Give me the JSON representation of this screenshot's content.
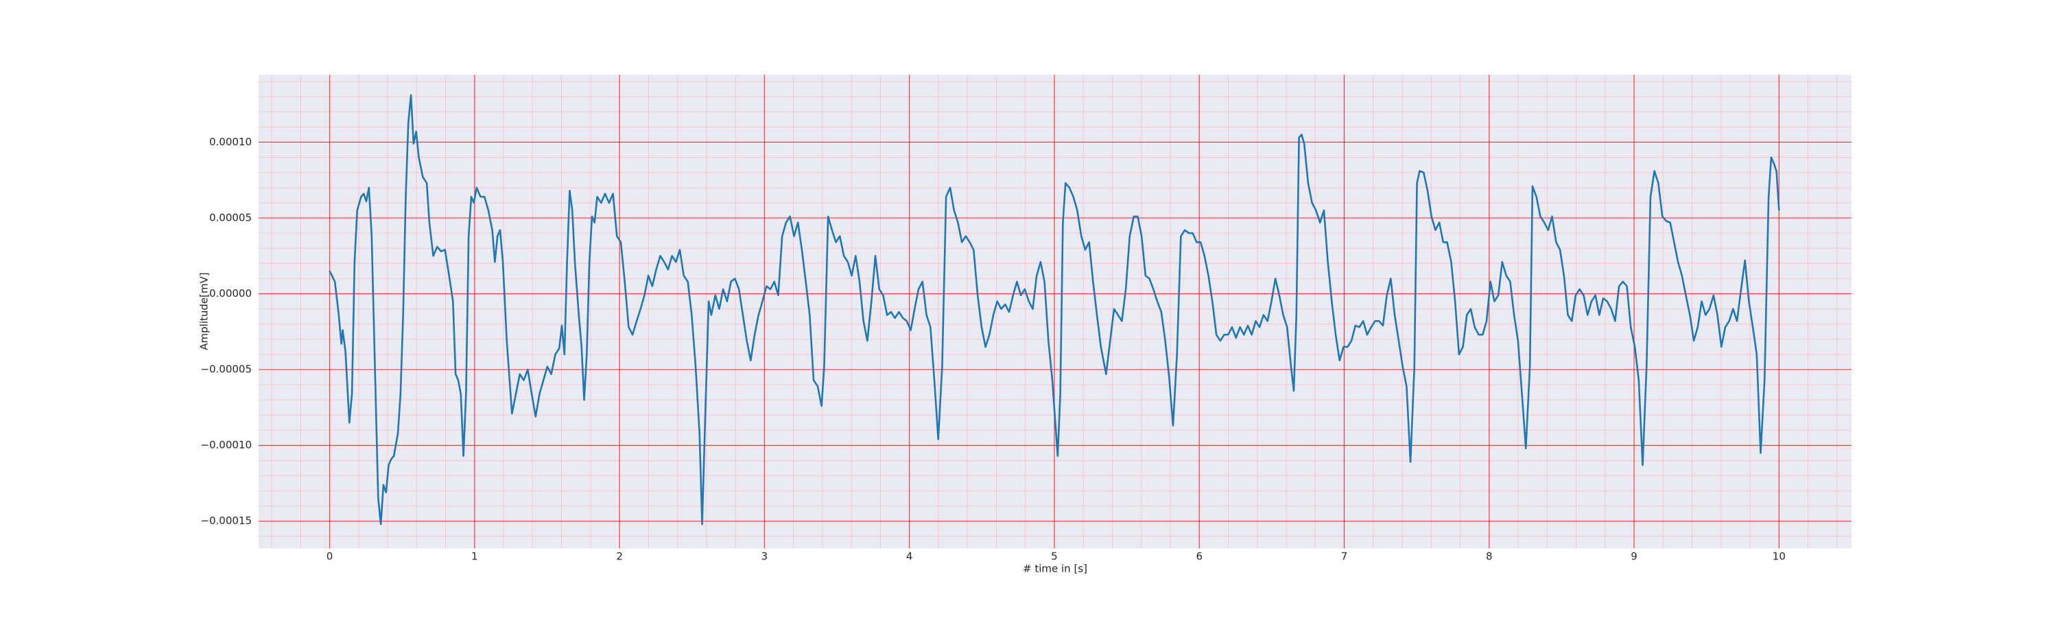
{
  "chart_data": {
    "type": "line",
    "x_label": "# time in [s]",
    "y_label": "Amplitude[mV]",
    "color": "#1f77b4",
    "grid": true,
    "minor_grid": true,
    "background": "#eaeaf2",
    "grid_color": "#ff0000",
    "minor_grid_color": "#ffb6c1",
    "xlim": [
      -0.49,
      10.5
    ],
    "ylim": [
      -0.000168,
      0.0001445
    ],
    "xticks": [
      0,
      1,
      2,
      3,
      4,
      5,
      6,
      7,
      8,
      9,
      10
    ],
    "yticks": [
      {
        "value": -0.00015,
        "label": "−0.00015"
      },
      {
        "value": -0.0001,
        "label": "−0.00010"
      },
      {
        "value": -5e-05,
        "label": "−0.00005"
      },
      {
        "value": 0,
        "label": "0.00000"
      },
      {
        "value": 5e-05,
        "label": "0.00005"
      },
      {
        "value": 0.0001,
        "label": "0.00010"
      }
    ],
    "x": [
      0.0,
      0.036,
      0.063,
      0.081,
      0.09,
      0.109,
      0.136,
      0.154,
      0.172,
      0.19,
      0.217,
      0.235,
      0.253,
      0.271,
      0.29,
      0.317,
      0.335,
      0.353,
      0.371,
      0.389,
      0.407,
      0.425,
      0.443,
      0.471,
      0.489,
      0.507,
      0.525,
      0.543,
      0.561,
      0.579,
      0.597,
      0.615,
      0.643,
      0.67,
      0.688,
      0.715,
      0.742,
      0.769,
      0.796,
      0.824,
      0.851,
      0.869,
      0.887,
      0.905,
      0.923,
      0.941,
      0.959,
      0.977,
      0.995,
      1.014,
      1.041,
      1.068,
      1.095,
      1.122,
      1.14,
      1.158,
      1.176,
      1.195,
      1.222,
      1.258,
      1.285,
      1.312,
      1.339,
      1.367,
      1.394,
      1.421,
      1.448,
      1.475,
      1.502,
      1.529,
      1.557,
      1.584,
      1.602,
      1.62,
      1.638,
      1.656,
      1.674,
      1.692,
      1.719,
      1.738,
      1.756,
      1.774,
      1.792,
      1.81,
      1.828,
      1.846,
      1.873,
      1.9,
      1.928,
      1.955,
      1.982,
      2.009,
      2.036,
      2.063,
      2.09,
      2.118,
      2.145,
      2.172,
      2.199,
      2.226,
      2.253,
      2.281,
      2.308,
      2.335,
      2.362,
      2.389,
      2.416,
      2.443,
      2.471,
      2.498,
      2.525,
      2.552,
      2.57,
      2.588,
      2.615,
      2.633,
      2.661,
      2.688,
      2.715,
      2.742,
      2.769,
      2.796,
      2.824,
      2.851,
      2.878,
      2.905,
      2.932,
      2.959,
      2.986,
      3.014,
      3.041,
      3.068,
      3.095,
      3.122,
      3.149,
      3.176,
      3.204,
      3.231,
      3.258,
      3.285,
      3.312,
      3.339,
      3.367,
      3.394,
      3.412,
      3.439,
      3.466,
      3.493,
      3.52,
      3.548,
      3.575,
      3.602,
      3.629,
      3.656,
      3.683,
      3.71,
      3.738,
      3.765,
      3.792,
      3.819,
      3.846,
      3.873,
      3.9,
      3.928,
      3.955,
      3.982,
      4.009,
      4.036,
      4.063,
      4.09,
      4.118,
      4.145,
      4.172,
      4.199,
      4.226,
      4.253,
      4.281,
      4.308,
      4.335,
      4.362,
      4.389,
      4.416,
      4.443,
      4.471,
      4.498,
      4.525,
      4.552,
      4.579,
      4.606,
      4.633,
      4.661,
      4.688,
      4.715,
      4.742,
      4.769,
      4.796,
      4.824,
      4.851,
      4.878,
      4.905,
      4.932,
      4.959,
      4.986,
      5.023,
      5.041,
      5.059,
      5.077,
      5.104,
      5.131,
      5.158,
      5.186,
      5.213,
      5.24,
      5.267,
      5.294,
      5.321,
      5.357,
      5.385,
      5.412,
      5.439,
      5.466,
      5.493,
      5.52,
      5.548,
      5.575,
      5.602,
      5.629,
      5.656,
      5.683,
      5.71,
      5.738,
      5.765,
      5.792,
      5.819,
      5.846,
      5.873,
      5.9,
      5.928,
      5.955,
      5.982,
      6.009,
      6.036,
      6.063,
      6.09,
      6.118,
      6.145,
      6.172,
      6.199,
      6.226,
      6.253,
      6.281,
      6.308,
      6.335,
      6.362,
      6.389,
      6.416,
      6.443,
      6.471,
      6.498,
      6.525,
      6.552,
      6.579,
      6.606,
      6.633,
      6.652,
      6.67,
      6.688,
      6.706,
      6.724,
      6.751,
      6.778,
      6.805,
      6.833,
      6.86,
      6.887,
      6.914,
      6.941,
      6.968,
      6.995,
      7.023,
      7.05,
      7.077,
      7.104,
      7.131,
      7.158,
      7.186,
      7.213,
      7.24,
      7.267,
      7.294,
      7.321,
      7.348,
      7.376,
      7.403,
      7.43,
      7.457,
      7.484,
      7.502,
      7.52,
      7.548,
      7.575,
      7.602,
      7.629,
      7.656,
      7.683,
      7.71,
      7.738,
      7.765,
      7.792,
      7.819,
      7.846,
      7.873,
      7.9,
      7.928,
      7.955,
      7.982,
      8.009,
      8.036,
      8.063,
      8.09,
      8.118,
      8.145,
      8.172,
      8.199,
      8.226,
      8.253,
      8.281,
      8.299,
      8.326,
      8.353,
      8.38,
      8.407,
      8.434,
      8.462,
      8.489,
      8.516,
      8.543,
      8.57,
      8.597,
      8.624,
      8.652,
      8.679,
      8.706,
      8.733,
      8.76,
      8.787,
      8.814,
      8.842,
      8.869,
      8.896,
      8.923,
      8.95,
      8.977,
      9.005,
      9.032,
      9.059,
      9.086,
      9.113,
      9.14,
      9.167,
      9.195,
      9.222,
      9.249,
      9.276,
      9.303,
      9.33,
      9.357,
      9.385,
      9.412,
      9.439,
      9.466,
      9.493,
      9.52,
      9.548,
      9.575,
      9.602,
      9.629,
      9.656,
      9.683,
      9.71,
      9.738,
      9.765,
      9.792,
      9.819,
      9.846,
      9.873,
      9.9,
      9.928,
      9.946,
      9.964,
      9.982,
      10.0
    ],
    "values": [
      1.5e-05,
      8e-06,
      -1.4e-05,
      -3.3e-05,
      -2.4e-05,
      -3.8e-05,
      -8.5e-05,
      -6.6e-05,
      2.1e-05,
      5.5e-05,
      6.4e-05,
      6.6e-05,
      6.1e-05,
      7e-05,
      3.8e-05,
      -6.6e-05,
      -0.000135,
      -0.000152,
      -0.000126,
      -0.000131,
      -0.000113,
      -0.000109,
      -0.000107,
      -9.2e-05,
      -6.6e-05,
      -1.4e-05,
      6.4e-05,
      0.000113,
      0.000131,
      9.9e-05,
      0.000107,
      9e-05,
      7.7e-05,
      7.3e-05,
      4.7e-05,
      2.5e-05,
      3.1e-05,
      2.8e-05,
      2.9e-05,
      1.2e-05,
      -5e-06,
      -5.3e-05,
      -5.7e-05,
      -6.6e-05,
      -0.000107,
      -6.6e-05,
      3.8e-05,
      6.4e-05,
      6e-05,
      7e-05,
      6.4e-05,
      6.4e-05,
      5.5e-05,
      4.2e-05,
      2.1e-05,
      3.8e-05,
      4.2e-05,
      2.1e-05,
      -3.1e-05,
      -7.9e-05,
      -6.6e-05,
      -5.3e-05,
      -5.7e-05,
      -5e-05,
      -6.6e-05,
      -8.1e-05,
      -6.6e-05,
      -5.7e-05,
      -4.8e-05,
      -5.3e-05,
      -4e-05,
      -3.6e-05,
      -2.1e-05,
      -4e-05,
      2.1e-05,
      6.8e-05,
      5.5e-05,
      2.1e-05,
      -1.4e-05,
      -3.5e-05,
      -7e-05,
      -4e-05,
      2.1e-05,
      5.1e-05,
      4.7e-05,
      6.4e-05,
      6e-05,
      6.6e-05,
      6e-05,
      6.6e-05,
      3.8e-05,
      3.4e-05,
      8e-06,
      -2.2e-05,
      -2.7e-05,
      -1.8e-05,
      -1e-05,
      -1e-06,
      1.2e-05,
      5e-06,
      1.6e-05,
      2.5e-05,
      2.1e-05,
      1.6e-05,
      2.5e-05,
      2.1e-05,
      2.9e-05,
      1.2e-05,
      8e-06,
      -1.4e-05,
      -4.8e-05,
      -9.2e-05,
      -0.000152,
      -9.2e-05,
      -5e-06,
      -1.4e-05,
      -1e-06,
      -1e-05,
      3e-06,
      -5e-06,
      8e-06,
      1e-05,
      3e-06,
      -1.4e-05,
      -3.1e-05,
      -4.4e-05,
      -2.7e-05,
      -1.4e-05,
      -5e-06,
      5e-06,
      3e-06,
      8e-06,
      -1e-06,
      3.8e-05,
      4.7e-05,
      5.1e-05,
      3.8e-05,
      4.7e-05,
      2.9e-05,
      8e-06,
      -1.4e-05,
      -5.7e-05,
      -6.1e-05,
      -7.4e-05,
      -4.8e-05,
      5.1e-05,
      4.2e-05,
      3.4e-05,
      3.8e-05,
      2.5e-05,
      2.1e-05,
      1.2e-05,
      2.5e-05,
      8e-06,
      -1.8e-05,
      -3.1e-05,
      -5e-06,
      2.5e-05,
      3e-06,
      -1e-06,
      -1.4e-05,
      -1.2e-05,
      -1.6e-05,
      -1.2e-05,
      -1.6e-05,
      -1.8e-05,
      -2.4e-05,
      -1e-05,
      3e-06,
      8e-06,
      -1.4e-05,
      -2.2e-05,
      -5.7e-05,
      -9.6e-05,
      -4.8e-05,
      6.4e-05,
      7e-05,
      5.5e-05,
      4.7e-05,
      3.4e-05,
      3.8e-05,
      3.4e-05,
      2.9e-05,
      -1e-06,
      -2.2e-05,
      -3.5e-05,
      -2.7e-05,
      -1.4e-05,
      -5e-06,
      -1e-05,
      -7e-06,
      -1.2e-05,
      -1e-06,
      8e-06,
      -1e-06,
      3e-06,
      -5e-06,
      -1e-05,
      1.2e-05,
      2.1e-05,
      8e-06,
      -3.1e-05,
      -5.7e-05,
      -0.000107,
      -6.6e-05,
      4.7e-05,
      7.3e-05,
      7e-05,
      6.4e-05,
      5.5e-05,
      3.8e-05,
      2.9e-05,
      3.4e-05,
      8e-06,
      -1.4e-05,
      -3.5e-05,
      -5.3e-05,
      -3.1e-05,
      -1e-05,
      -1.4e-05,
      -1.8e-05,
      3e-06,
      3.8e-05,
      5.1e-05,
      5.1e-05,
      3.8e-05,
      1.2e-05,
      1e-05,
      3e-06,
      -5e-06,
      -1.2e-05,
      -3.1e-05,
      -5.5e-05,
      -8.7e-05,
      -4e-05,
      3.8e-05,
      4.2e-05,
      4e-05,
      4e-05,
      3.4e-05,
      3.4e-05,
      2.5e-05,
      1.2e-05,
      -5e-06,
      -2.7e-05,
      -3.1e-05,
      -2.7e-05,
      -2.7e-05,
      -2.2e-05,
      -2.9e-05,
      -2.2e-05,
      -2.7e-05,
      -2.1e-05,
      -2.7e-05,
      -1.8e-05,
      -2.2e-05,
      -1.4e-05,
      -1.8e-05,
      -5e-06,
      1e-05,
      -1e-06,
      -1.4e-05,
      -2.2e-05,
      -4.8e-05,
      -6.4e-05,
      -1.4e-05,
      0.000103,
      0.000105,
      9.9e-05,
      7.3e-05,
      6e-05,
      5.5e-05,
      4.7e-05,
      5.5e-05,
      2.1e-05,
      -5e-06,
      -2.7e-05,
      -4.4e-05,
      -3.5e-05,
      -3.5e-05,
      -3.1e-05,
      -2.1e-05,
      -2.2e-05,
      -1.8e-05,
      -2.7e-05,
      -2.2e-05,
      -1.8e-05,
      -1.8e-05,
      -2.1e-05,
      -1e-06,
      1e-05,
      -1.4e-05,
      -3.1e-05,
      -4.8e-05,
      -6.1e-05,
      -0.000111,
      -4.8e-05,
      7.3e-05,
      8.1e-05,
      8e-05,
      6.8e-05,
      5.1e-05,
      4.2e-05,
      4.7e-05,
      3.4e-05,
      3.4e-05,
      2.1e-05,
      -5e-06,
      -4e-05,
      -3.5e-05,
      -1.4e-05,
      -1e-05,
      -2.2e-05,
      -2.7e-05,
      -2.7e-05,
      -1.8e-05,
      8e-06,
      -5e-06,
      -1e-06,
      2.1e-05,
      1.2e-05,
      8e-06,
      -1.4e-05,
      -3.1e-05,
      -6.6e-05,
      -0.000102,
      -4.8e-05,
      7.1e-05,
      6.4e-05,
      5.1e-05,
      4.7e-05,
      4.2e-05,
      5.1e-05,
      3.4e-05,
      2.9e-05,
      1.2e-05,
      -1.4e-05,
      -1.8e-05,
      -1e-06,
      3e-06,
      -1e-06,
      -1.4e-05,
      -5e-06,
      -1e-06,
      -1.4e-05,
      -3e-06,
      -5e-06,
      -1e-05,
      -1.8e-05,
      5e-06,
      8e-06,
      5e-06,
      -2.2e-05,
      -3.5e-05,
      -5.7e-05,
      -0.000113,
      -4.8e-05,
      6.4e-05,
      8.1e-05,
      7.3e-05,
      5.1e-05,
      4.8e-05,
      4.7e-05,
      3.4e-05,
      2.1e-05,
      1.2e-05,
      -1e-06,
      -1.4e-05,
      -3.1e-05,
      -2.2e-05,
      -5e-06,
      -1.4e-05,
      -1e-05,
      -1e-06,
      -1.4e-05,
      -3.5e-05,
      -2.2e-05,
      -1.8e-05,
      -1e-05,
      -1.8e-05,
      3e-06,
      2.2e-05,
      -5e-06,
      -2.2e-05,
      -4e-05,
      -0.000105,
      -5.7e-05,
      6.4e-05,
      9e-05,
      8.6e-05,
      8.1e-05,
      5.5e-05
    ]
  }
}
